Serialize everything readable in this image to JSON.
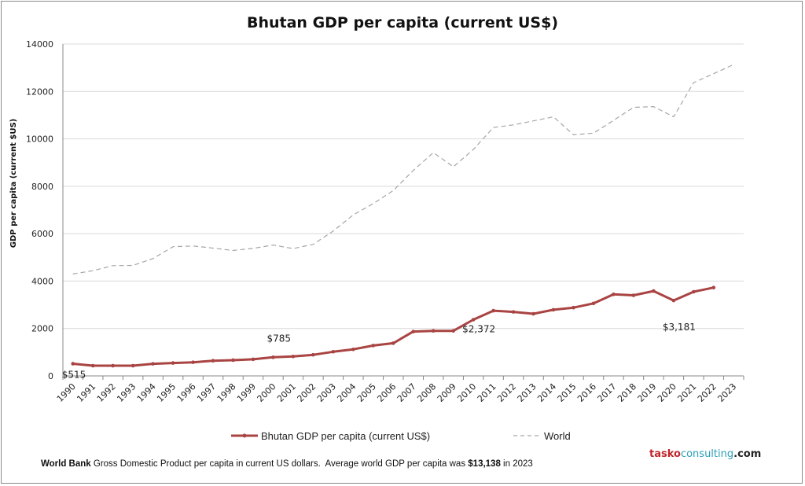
{
  "chart_data": {
    "type": "line",
    "title": "Bhutan GDP per capita (current US$)",
    "ylabel": "GDP per capita (current $US)",
    "xlabel": "",
    "ylim": [
      0,
      14000
    ],
    "yticks": [
      0,
      2000,
      4000,
      6000,
      8000,
      10000,
      12000,
      14000
    ],
    "grid": "horizontal",
    "legend_placement": "bottom",
    "categories": [
      "1990",
      "1991",
      "1992",
      "1993",
      "1994",
      "1995",
      "1996",
      "1997",
      "1998",
      "1999",
      "2000",
      "2001",
      "2002",
      "2003",
      "2004",
      "2005",
      "2006",
      "2007",
      "2008",
      "2009",
      "2010",
      "2011",
      "2012",
      "2013",
      "2014",
      "2015",
      "2016",
      "2017",
      "2018",
      "2019",
      "2020",
      "2021",
      "2022",
      "2023"
    ],
    "series": [
      {
        "name": "Bhutan GDP per capita (current US$)",
        "color": "#a94442",
        "style": "solid-markers",
        "values": [
          515,
          430,
          430,
          430,
          510,
          545,
          575,
          640,
          665,
          700,
          785,
          820,
          890,
          1020,
          1120,
          1280,
          1380,
          1870,
          1900,
          1900,
          2372,
          2750,
          2700,
          2620,
          2790,
          2880,
          3060,
          3440,
          3400,
          3580,
          3181,
          3550,
          3725,
          null
        ]
      },
      {
        "name": "World",
        "color": "#a6a6a6",
        "style": "dashed",
        "values": [
          4300,
          4440,
          4650,
          4660,
          4950,
          5450,
          5480,
          5390,
          5290,
          5380,
          5520,
          5370,
          5550,
          6110,
          6790,
          7270,
          7820,
          8670,
          9420,
          8820,
          9550,
          10480,
          10590,
          10760,
          10930,
          10170,
          10240,
          10780,
          11330,
          11360,
          10930,
          12370,
          12750,
          13138
        ]
      }
    ],
    "annotations": [
      {
        "category": "1990",
        "series": 0,
        "text": "$515"
      },
      {
        "category": "2000",
        "series": 0,
        "text": "$785"
      },
      {
        "category": "2010",
        "series": 0,
        "text": "$2,372"
      },
      {
        "category": "2020",
        "series": 0,
        "text": "$3,181"
      }
    ]
  },
  "footer": {
    "source": "World Bank",
    "text": " Gross Domestic Product per capita in current US dollars.  Average world GDP per capita was ",
    "highlight": "$13,138",
    "suffix": " in 2023"
  },
  "brand": {
    "part1": "tasko",
    "part2": "consulting",
    "part3": ".com",
    "color1": "#c0262d",
    "color2": "#2a9fb8",
    "color3": "#222222"
  }
}
